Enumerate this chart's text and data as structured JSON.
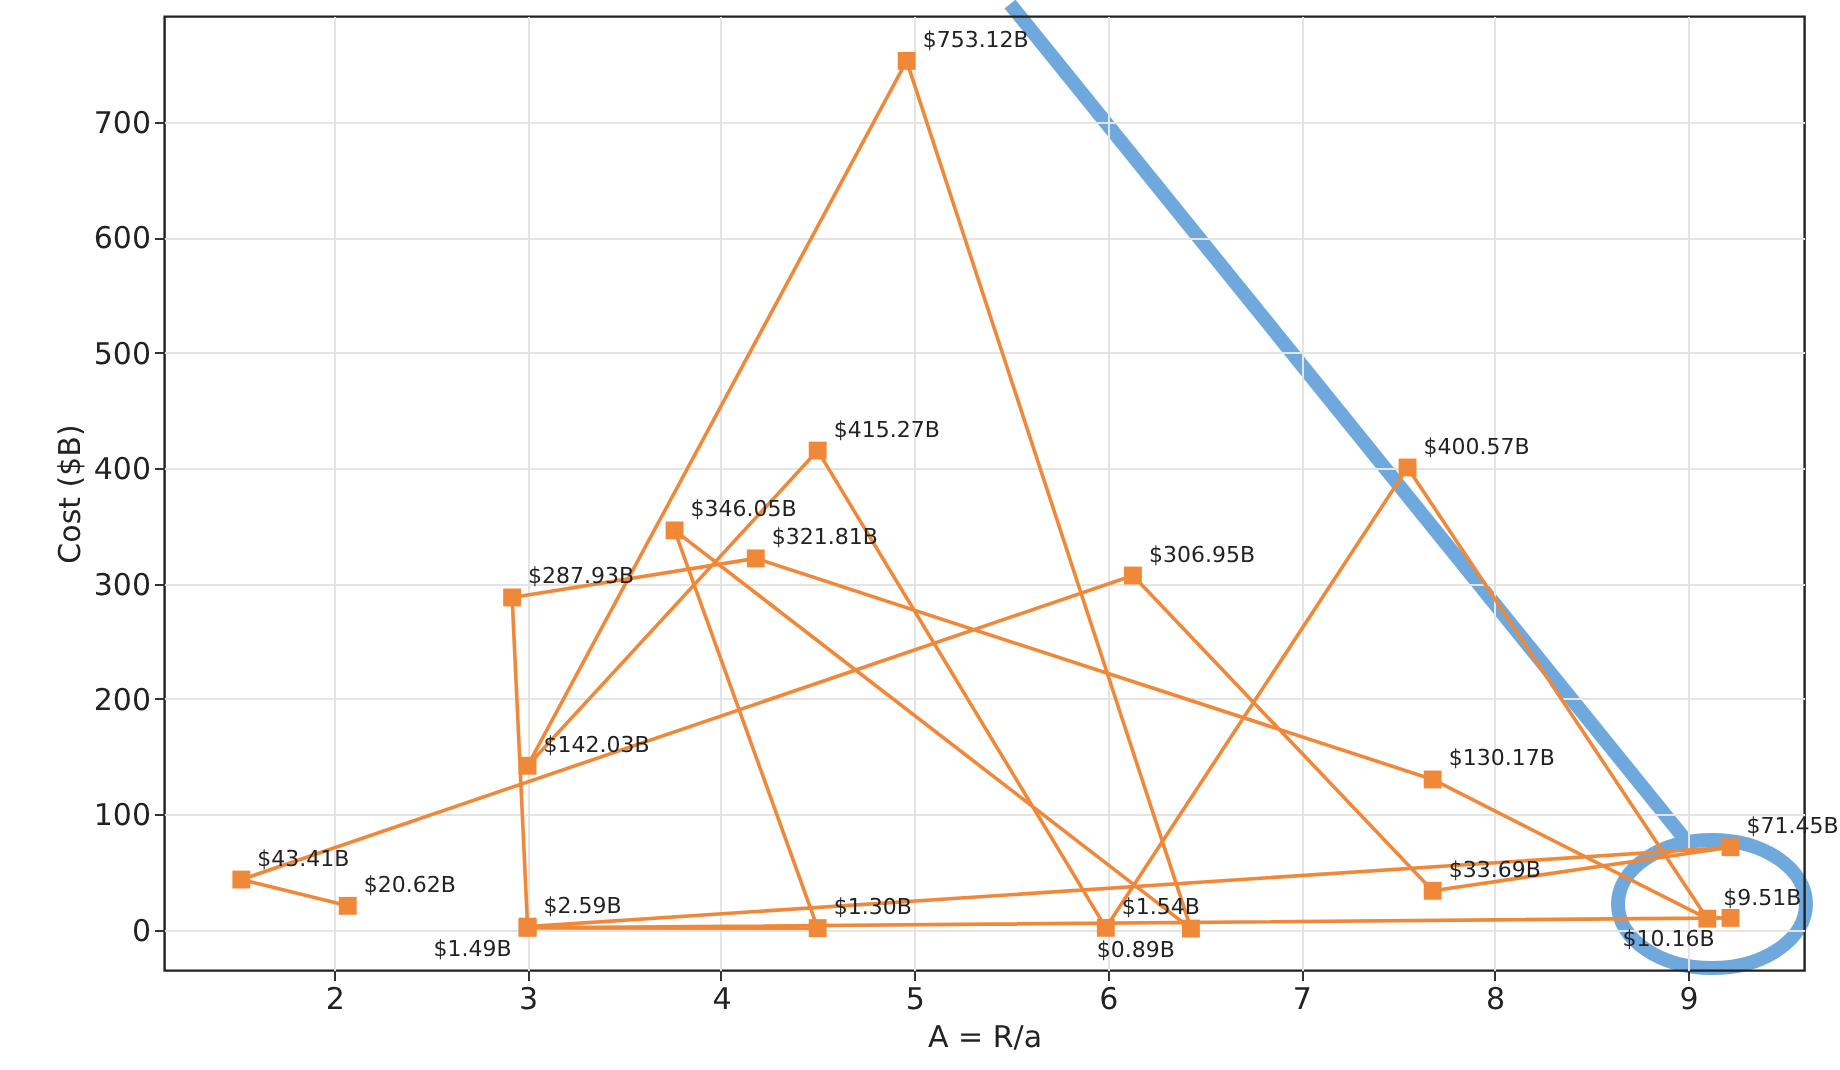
{
  "chart_data": {
    "type": "line",
    "xlabel": "A = R/a",
    "ylabel": "Cost ($B)",
    "xlim": [
      1.12,
      9.6
    ],
    "xticks": [
      2,
      3,
      4,
      5,
      6,
      7,
      8,
      9
    ],
    "ylim": [
      -35,
      792
    ],
    "yticks": [
      0,
      100,
      200,
      300,
      400,
      500,
      600,
      700
    ],
    "grid": true,
    "marker": "square",
    "line_style": "solid",
    "series": [
      {
        "color": "#f0883a",
        "x": [
          2.07,
          1.52,
          6.13,
          7.68,
          9.22,
          3.0,
          2.92,
          4.18,
          7.68,
          9.1,
          7.55,
          5.99,
          4.5,
          3.0,
          4.96,
          6.43,
          3.76,
          4.5,
          3.0,
          9.22
        ],
        "values": [
          20.62,
          43.41,
          306.95,
          33.69,
          71.45,
          2.59,
          287.93,
          321.81,
          130.17,
          9.51,
          400.57,
          1.54,
          415.27,
          142.03,
          753.12,
          0.89,
          346.05,
          1.3,
          1.49,
          10.16
        ],
        "value_labels": [
          "$20.62B",
          "$43.41B",
          "$306.95B",
          "$33.69B",
          "$71.45B",
          "$2.59B",
          "$287.93B",
          "$321.81B",
          "$130.17B",
          "$9.51B",
          "$400.57B",
          "$1.54B",
          "$415.27B",
          "$142.03B",
          "$753.12B",
          "$0.89B",
          "$346.05B",
          "$1.30B",
          "$1.49B",
          "$10.16B"
        ]
      }
    ]
  }
}
